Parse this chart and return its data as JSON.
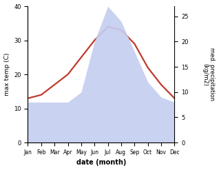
{
  "months": [
    "Jan",
    "Feb",
    "Mar",
    "Apr",
    "May",
    "Jun",
    "Jul",
    "Aug",
    "Sep",
    "Oct",
    "Nov",
    "Dec"
  ],
  "temp": [
    13,
    14,
    17,
    20,
    25,
    30,
    34,
    33,
    29,
    22,
    17,
    13
  ],
  "precip": [
    8,
    8,
    8,
    8,
    10,
    20,
    27,
    24,
    18,
    12,
    9,
    8
  ],
  "temp_color": "#c0392b",
  "precip_color": "#c5cef0",
  "xlabel": "date (month)",
  "ylabel_left": "max temp (C)",
  "ylabel_right": "med. precipitation\n(kg/m2)",
  "ylim_left": [
    0,
    40
  ],
  "ylim_right": [
    0,
    27
  ],
  "yticks_left": [
    0,
    10,
    20,
    30,
    40
  ],
  "yticks_right": [
    0,
    5,
    10,
    15,
    20,
    25
  ],
  "bg_color": "#ffffff",
  "line_width": 1.6
}
